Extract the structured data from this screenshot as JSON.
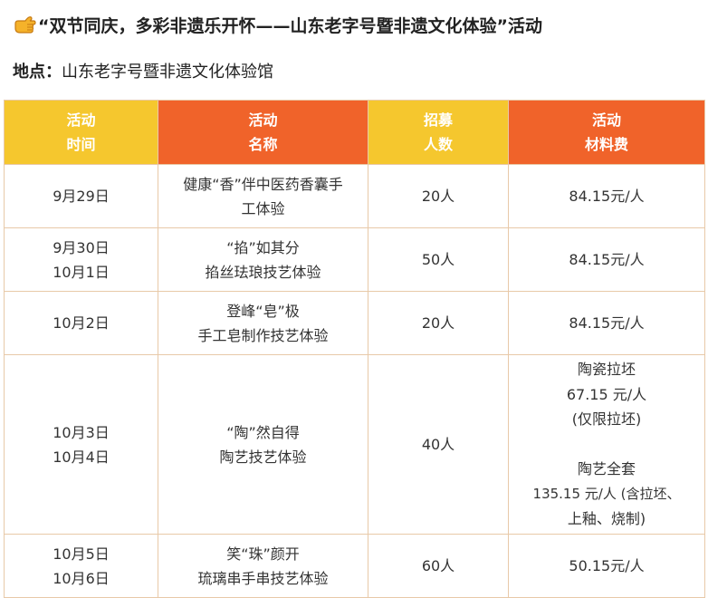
{
  "header": {
    "title": "“双节同庆，多彩非遗乐开怀——山东老字号暨非遗文化体验”活动",
    "location_label": "地点：",
    "location_value": "山东老字号暨非遗文化体验馆"
  },
  "colors": {
    "header_yellow": "#f5c72e",
    "header_orange": "#f0632a",
    "border": "#e8c9a8"
  },
  "icons": {
    "title_icon": "pointing-hand-icon"
  },
  "table": {
    "columns": [
      {
        "line1": "活动",
        "line2": "时间"
      },
      {
        "line1": "活动",
        "line2": "名称"
      },
      {
        "line1": "招募",
        "line2": "人数"
      },
      {
        "line1": "活动",
        "line2": "材料费"
      }
    ],
    "rows": [
      {
        "date": [
          "9月29日"
        ],
        "name": [
          "健康“香”伴中医药香囊手",
          "工体验"
        ],
        "count": "20人",
        "fee": [
          "84.15元/人"
        ]
      },
      {
        "date": [
          "9月30日",
          "10月1日"
        ],
        "name": [
          "“掐”如其分",
          "掐丝珐琅技艺体验"
        ],
        "count": "50人",
        "fee": [
          "84.15元/人"
        ]
      },
      {
        "date": [
          "10月2日"
        ],
        "name": [
          "登峰“皂”极",
          "手工皂制作技艺体验"
        ],
        "count": "20人",
        "fee": [
          "84.15元/人"
        ]
      },
      {
        "date": [
          "10月3日",
          "10月4日"
        ],
        "name": [
          "“陶”然自得",
          "陶艺技艺体验"
        ],
        "count": "40人",
        "fee": [
          "陶瓷拉坯",
          "67.15 元/人",
          "(仅限拉坯)",
          "",
          "陶艺全套",
          "135.15 元/人 (含拉坯、",
          "上釉、烧制)"
        ]
      },
      {
        "date": [
          "10月5日",
          "10月6日"
        ],
        "name": [
          "笑“珠”颜开",
          "琉璃串手串技艺体验"
        ],
        "count": "60人",
        "fee": [
          "50.15元/人"
        ]
      }
    ]
  }
}
